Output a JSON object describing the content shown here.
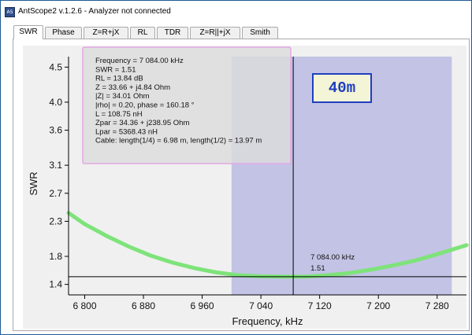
{
  "window": {
    "title": "AntScope2 v.1.2.6 - Analyzer not connected",
    "icon": "AS"
  },
  "tabs": [
    {
      "label": "SWR",
      "active": true
    },
    {
      "label": "Phase",
      "active": false
    },
    {
      "label": "Z=R+jX",
      "active": false
    },
    {
      "label": "RL",
      "active": false
    },
    {
      "label": "TDR",
      "active": false
    },
    {
      "label": "Z=R||+jX",
      "active": false
    },
    {
      "label": "Smith",
      "active": false
    }
  ],
  "tooltip": {
    "lines": [
      "Frequency = 7 084.00 kHz",
      "SWR = 1.51",
      "RL = 13.84 dB",
      "Z = 33.66 + j4.84 Ohm",
      "|Z| = 34.01 Ohm",
      "|rho| = 0.20, phase = 160.18 °",
      "L = 108.75 nH",
      "Zpar = 34.36 + j238.95 Ohm",
      "Lpar = 5368.43 nH",
      "Cable: length(1/4) = 6.98 m, length(1/2) = 13.97 m"
    ]
  },
  "band_label": "40m",
  "marker": {
    "freq_label": "7 084.00 kHz",
    "swr_label": "1.51"
  },
  "colors": {
    "curve": "#7ee37a",
    "band": "#c3c3e6",
    "band_label_border": "#1f3fbf",
    "tooltip_fill": "#dcdcdc",
    "tooltip_border": "#e2a8e2"
  },
  "chart_data": {
    "type": "line",
    "xlabel": "Frequency, kHz",
    "ylabel": "SWR",
    "xlim": [
      6778,
      7320
    ],
    "ylim": [
      1.25,
      4.65
    ],
    "x_ticks": [
      6800,
      6880,
      6960,
      7040,
      7120,
      7200,
      7280
    ],
    "x_tick_labels": [
      "6 800",
      "6 880",
      "6 960",
      "7 040",
      "7 120",
      "7 200",
      "7 280"
    ],
    "y_ticks": [
      1.4,
      1.8,
      2.3,
      2.7,
      3.1,
      3.6,
      4.0,
      4.5
    ],
    "y_tick_labels": [
      "1.4",
      "1.8",
      "2.3",
      "2.7",
      "3.1",
      "3.6",
      "4.0",
      "4.5"
    ],
    "band": [
      7000,
      7300
    ],
    "marker_x": 7084,
    "marker_y": 1.51,
    "series": [
      {
        "x": [
          6778,
          6800,
          6830,
          6860,
          6890,
          6920,
          6950,
          6980,
          7010,
          7040,
          7070,
          7084,
          7100,
          7130,
          7160,
          7190,
          7220,
          7250,
          7280,
          7320
        ],
        "y": [
          2.42,
          2.26,
          2.09,
          1.94,
          1.81,
          1.71,
          1.63,
          1.57,
          1.53,
          1.515,
          1.51,
          1.51,
          1.51,
          1.53,
          1.56,
          1.61,
          1.67,
          1.74,
          1.83,
          1.96
        ]
      }
    ]
  }
}
